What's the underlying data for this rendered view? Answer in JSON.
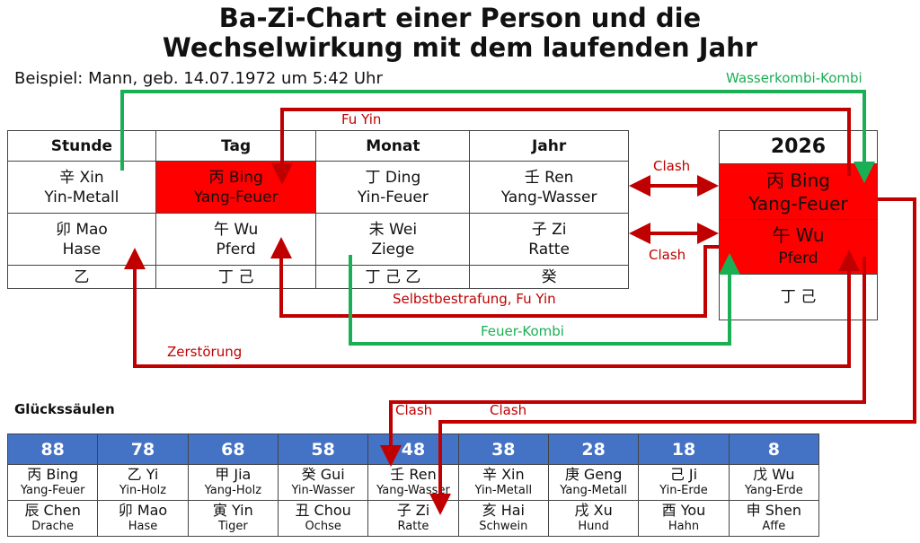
{
  "title_line1": "Ba-Zi-Chart einer Person und die",
  "title_line2": "Wechselwirkung mit dem laufenden Jahr",
  "subtitle": "Beispiel: Mann, geb. 14.07.1972 um 5:42 Uhr",
  "pillars": [
    {
      "header": "Stunde",
      "stem": "辛 Xin",
      "stem_el": "Yin-Metall",
      "branch": "卯 Mao",
      "animal": "Hase",
      "hidden": "乙"
    },
    {
      "header": "Tag",
      "stem": "丙 Bing",
      "stem_el": "Yang-Feuer",
      "branch": "午 Wu",
      "animal": "Pferd",
      "hidden": "丁 己"
    },
    {
      "header": "Monat",
      "stem": "丁 Ding",
      "stem_el": "Yin-Feuer",
      "branch": "未 Wei",
      "animal": "Ziege",
      "hidden": "丁 己 乙"
    },
    {
      "header": "Jahr",
      "stem": "壬 Ren",
      "stem_el": "Yang-Wasser",
      "branch": "子 Zi",
      "animal": "Ratte",
      "hidden": "癸"
    }
  ],
  "year": {
    "header": "2026",
    "stem": "丙 Bing",
    "stem_el": "Yang-Feuer",
    "branch": "午 Wu",
    "animal": "Pferd",
    "hidden": "丁 己"
  },
  "labels": {
    "wasserkombi": "Wasserkombi-Kombi",
    "fuyin": "Fu Yin",
    "clash1": "Clash",
    "clash2": "Clash",
    "selbst": "Selbstbestrafung, Fu Yin",
    "feuer": "Feuer-Kombi",
    "zerst": "Zerstörung",
    "clash3": "Clash",
    "clash4": "Clash"
  },
  "luck_title": "Glückssäulen",
  "luck": [
    {
      "age": "88",
      "stem": "丙 Bing",
      "stem_el": "Yang-Feuer",
      "branch": "辰 Chen",
      "animal": "Drache"
    },
    {
      "age": "78",
      "stem": "乙 Yi",
      "stem_el": "Yin-Holz",
      "branch": "卯 Mao",
      "animal": "Hase"
    },
    {
      "age": "68",
      "stem": "甲 Jia",
      "stem_el": "Yang-Holz",
      "branch": "寅 Yin",
      "animal": "Tiger"
    },
    {
      "age": "58",
      "stem": "癸 Gui",
      "stem_el": "Yin-Wasser",
      "branch": "丑 Chou",
      "animal": "Ochse"
    },
    {
      "age": "48",
      "stem": "壬 Ren",
      "stem_el": "Yang-Wasser",
      "branch": "子 Zi",
      "animal": "Ratte"
    },
    {
      "age": "38",
      "stem": "辛 Xin",
      "stem_el": "Yin-Metall",
      "branch": "亥 Hai",
      "animal": "Schwein"
    },
    {
      "age": "28",
      "stem": "庚 Geng",
      "stem_el": "Yang-Metall",
      "branch": "戌 Xu",
      "animal": "Hund"
    },
    {
      "age": "18",
      "stem": "己 Ji",
      "stem_el": "Yin-Erde",
      "branch": "酉 You",
      "animal": "Hahn"
    },
    {
      "age": "8",
      "stem": "戊 Wu",
      "stem_el": "Yang-Erde",
      "branch": "申 Shen",
      "animal": "Affe"
    }
  ],
  "colors": {
    "highlight": "#ff0000",
    "arrow_red": "#c00000",
    "arrow_green": "#1aaf54",
    "luck_header": "#4472c4"
  }
}
